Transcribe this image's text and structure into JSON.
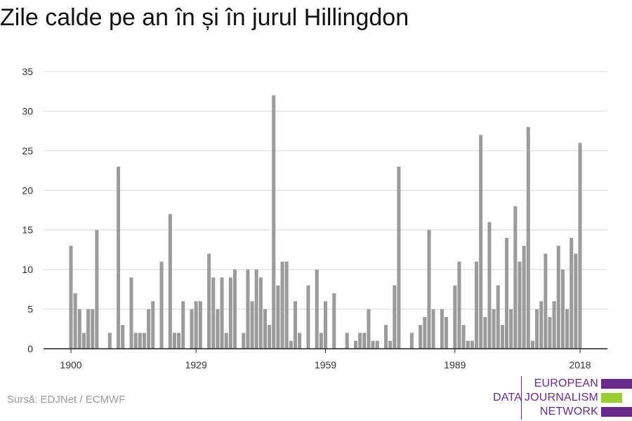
{
  "title": "Zile calde pe an în și în jurul Hillingdon",
  "source": "Sursă: EDJNet / ECMWF",
  "brand": {
    "lines": [
      "EUROPEAN",
      "DATA JOURNALISM",
      "NETWORK"
    ],
    "colors": {
      "text": "#6a2a8c",
      "purple": "#6a2a8c",
      "green": "#9acd32"
    }
  },
  "chart_data": {
    "type": "bar",
    "title": "Zile calde pe an în și în jurul Hillingdon",
    "xlabel": "",
    "ylabel": "",
    "x_start": 1900,
    "x_end": 2018,
    "xticks": [
      1900,
      1929,
      1959,
      1989,
      2018
    ],
    "yticks": [
      0,
      5,
      10,
      15,
      20,
      25,
      30,
      35
    ],
    "ylim": [
      0,
      35
    ],
    "grid": true,
    "bar_color": "#9b9b9b",
    "values": [
      13,
      7,
      5,
      2,
      5,
      5,
      15,
      0,
      0,
      2,
      0,
      23,
      3,
      0,
      9,
      2,
      2,
      2,
      5,
      6,
      0,
      11,
      0,
      17,
      2,
      2,
      6,
      0,
      5,
      6,
      6,
      0,
      12,
      9,
      5,
      9,
      2,
      9,
      10,
      0,
      2,
      10,
      6,
      10,
      9,
      5,
      3,
      32,
      8,
      11,
      11,
      1,
      6,
      2,
      0,
      8,
      0,
      10,
      2,
      6,
      0,
      7,
      0,
      0,
      2,
      0,
      1,
      2,
      2,
      5,
      1,
      1,
      0,
      3,
      1,
      8,
      23,
      0,
      0,
      2,
      0,
      3,
      4,
      15,
      5,
      0,
      5,
      4,
      0,
      8,
      11,
      3,
      1,
      1,
      11,
      27,
      4,
      16,
      5,
      8,
      3,
      14,
      5,
      18,
      11,
      13,
      28,
      1,
      5,
      6,
      12,
      4,
      6,
      13,
      10,
      5,
      14,
      12,
      26
    ]
  }
}
